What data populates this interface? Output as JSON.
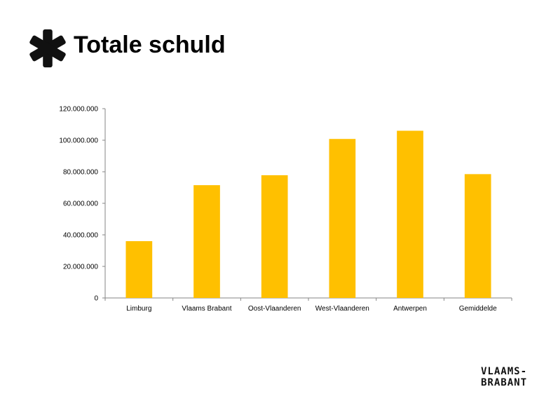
{
  "header": {
    "title": "Totale schuld"
  },
  "logo": {
    "line1": "VLAAMS-",
    "line2": "BRABANT"
  },
  "colors": {
    "bar": "#FFC000",
    "axis": "#868686",
    "text": "#000000",
    "asterisk": "#111111"
  },
  "icons": {
    "header_icon": "asterisk-icon"
  },
  "chart_data": {
    "type": "bar",
    "categories": [
      "Limburg",
      "Vlaams Brabant",
      "Oost-Vlaanderen",
      "West-Vlaanderen",
      "Antwerpen",
      "Gemiddelde"
    ],
    "series": [
      {
        "values": [
          36000000,
          71500000,
          77800000,
          100800000,
          106000000,
          78500000
        ]
      }
    ],
    "y_ticks": [
      "0",
      "20.000.000",
      "40.000.000",
      "60.000.000",
      "80.000.000",
      "100.000.000",
      "120.000.000"
    ],
    "ylim": [
      0,
      120000000
    ],
    "title": "",
    "xlabel": "",
    "ylabel": "",
    "grid": false,
    "legend": "none"
  }
}
